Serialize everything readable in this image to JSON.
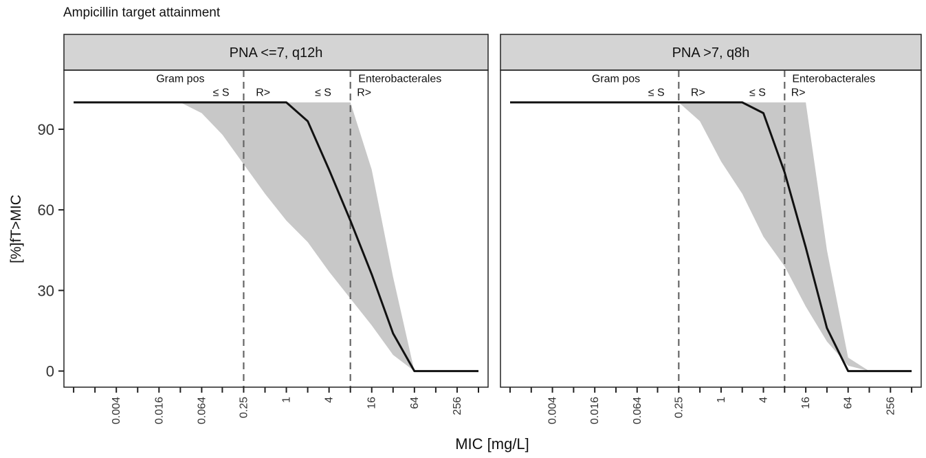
{
  "chart_data": {
    "title": "Ampicillin target attainment",
    "type": "line",
    "xlabel": "MIC [mg/L]",
    "ylabel": "[%]fT>MIC",
    "x_scale": "log2",
    "x_ticks": [
      0.001,
      0.002,
      0.004,
      0.008,
      0.016,
      0.032,
      0.064,
      0.125,
      0.25,
      0.5,
      1,
      2,
      4,
      8,
      16,
      32,
      64,
      128,
      256,
      512
    ],
    "x_tick_labels": [
      "0.004",
      "0.016",
      "0.064",
      "0.25",
      "1",
      "4",
      "16",
      "64",
      "256"
    ],
    "x_tick_label_values": [
      0.004,
      0.016,
      0.064,
      0.25,
      1,
      4,
      16,
      64,
      256
    ],
    "xlim": [
      0.00073,
      700
    ],
    "ylim": [
      -6,
      112
    ],
    "y_ticks": [
      0,
      30,
      60,
      90
    ],
    "y_tick_labels": [
      "0",
      "30",
      "60",
      "90"
    ],
    "grid": false,
    "facets": [
      {
        "strip_label": "PNA <=7, q12h",
        "breakpoints": [
          0.25,
          8
        ],
        "annotations": [
          {
            "text": "Gram pos",
            "x": 0.032,
            "y": 109
          },
          {
            "text": "≤ S",
            "x": 0.12,
            "y": 104
          },
          {
            "text": "R>",
            "x": 0.47,
            "y": 104
          },
          {
            "text": "≤ S",
            "x": 3.3,
            "y": 104
          },
          {
            "text": "Enterobacterales",
            "x": 40,
            "y": 109
          },
          {
            "text": "R>",
            "x": 12.5,
            "y": 104
          }
        ],
        "median": {
          "x": [
            0.001,
            0.002,
            0.004,
            0.008,
            0.016,
            0.032,
            0.064,
            0.125,
            0.25,
            0.5,
            1,
            2,
            4,
            8,
            16,
            32,
            64,
            128,
            256,
            512
          ],
          "y": [
            100,
            100,
            100,
            100,
            100,
            100,
            100,
            100,
            100,
            100,
            100,
            93,
            75,
            56,
            36,
            14,
            0,
            0,
            0,
            0
          ]
        },
        "band": {
          "x": [
            0.001,
            0.002,
            0.004,
            0.008,
            0.016,
            0.032,
            0.064,
            0.125,
            0.25,
            0.5,
            1,
            2,
            4,
            8,
            16,
            32,
            64,
            128,
            256,
            512
          ],
          "lower": [
            100,
            100,
            100,
            100,
            100,
            100,
            96,
            88,
            77,
            66,
            56,
            48,
            37,
            27,
            17,
            6,
            0,
            0,
            0,
            0
          ],
          "upper": [
            100,
            100,
            100,
            100,
            100,
            100,
            100,
            100,
            100,
            100,
            100,
            100,
            100,
            100,
            75,
            35,
            0,
            0,
            0,
            0
          ]
        }
      },
      {
        "strip_label": "PNA >7, q8h",
        "breakpoints": [
          0.25,
          8
        ],
        "annotations": [
          {
            "text": "Gram pos",
            "x": 0.032,
            "y": 109
          },
          {
            "text": "≤ S",
            "x": 0.12,
            "y": 104
          },
          {
            "text": "R>",
            "x": 0.47,
            "y": 104
          },
          {
            "text": "≤ S",
            "x": 3.3,
            "y": 104
          },
          {
            "text": "Enterobacterales",
            "x": 40,
            "y": 109
          },
          {
            "text": "R>",
            "x": 12.5,
            "y": 104
          }
        ],
        "median": {
          "x": [
            0.001,
            0.002,
            0.004,
            0.008,
            0.016,
            0.032,
            0.064,
            0.125,
            0.25,
            0.5,
            1,
            2,
            4,
            8,
            16,
            32,
            64,
            128,
            256,
            512
          ],
          "y": [
            100,
            100,
            100,
            100,
            100,
            100,
            100,
            100,
            100,
            100,
            100,
            100,
            96,
            74,
            46,
            16,
            0,
            0,
            0,
            0
          ]
        },
        "band": {
          "x": [
            0.001,
            0.002,
            0.004,
            0.008,
            0.016,
            0.032,
            0.064,
            0.125,
            0.25,
            0.5,
            1,
            2,
            4,
            8,
            16,
            32,
            64,
            128,
            256,
            512
          ],
          "lower": [
            100,
            100,
            100,
            100,
            100,
            100,
            100,
            100,
            100,
            93,
            78,
            66,
            50,
            39,
            24,
            11,
            2,
            0,
            0,
            0
          ],
          "upper": [
            100,
            100,
            100,
            100,
            100,
            100,
            100,
            100,
            100,
            100,
            100,
            100,
            100,
            100,
            100,
            45,
            5,
            0,
            0,
            0
          ]
        }
      }
    ]
  },
  "colors": {
    "strip_fill": "#d4d4d4",
    "band_fill": "#c8c8c8",
    "line": "#111111",
    "breakpoint_line": "#666666",
    "axis": "#222222",
    "text": "#111111",
    "tick_label": "#333333"
  }
}
